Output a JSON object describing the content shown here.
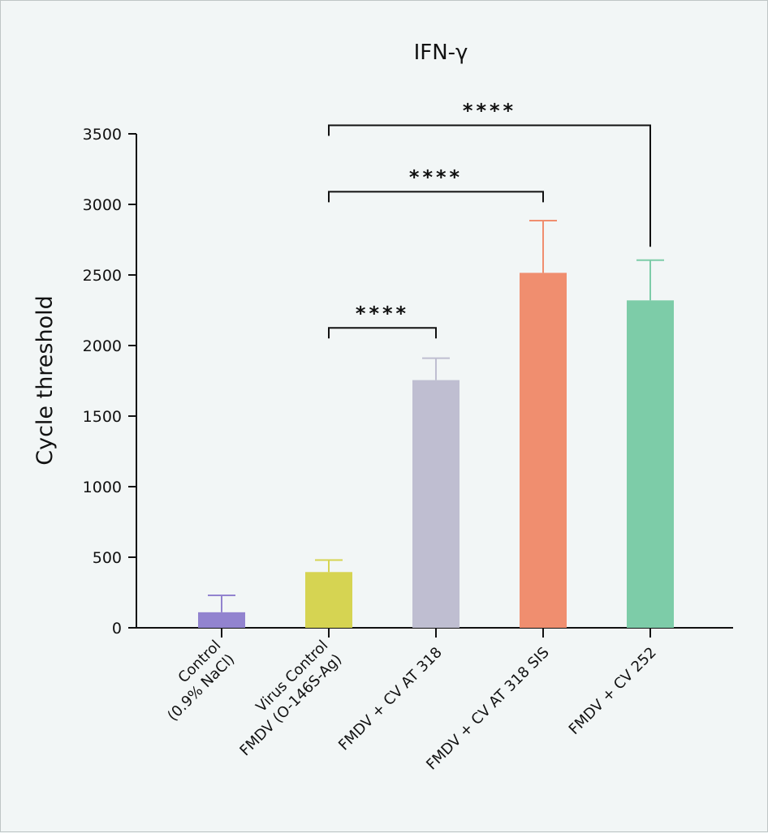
{
  "chart_data": {
    "type": "bar",
    "title": "IFN-γ",
    "xlabel": "",
    "ylabel": "Cycle threshold",
    "ylim": [
      0,
      3500
    ],
    "yticks": [
      0,
      500,
      1000,
      1500,
      2000,
      2500,
      3000,
      3500
    ],
    "grid": false,
    "categories": [
      [
        "Control",
        "(0.9% NaCl)"
      ],
      [
        "Virus Control",
        "FMDV (O-146S-Ag)"
      ],
      [
        "FMDV + CV AT 318"
      ],
      [
        "FMDV + CV AT 318 SIS"
      ],
      [
        "FMDV + CV 252"
      ]
    ],
    "values": [
      110,
      395,
      1755,
      2515,
      2320
    ],
    "errors_upper": [
      230,
      480,
      1910,
      2885,
      2605
    ],
    "colors": [
      "#9283cf",
      "#d6d452",
      "#bfbed1",
      "#f08e6f",
      "#7dcca8"
    ],
    "significance": [
      {
        "from": 1,
        "to": 2,
        "label": "****",
        "y": 2125
      },
      {
        "from": 1,
        "to": 3,
        "label": "****",
        "y": 3090
      },
      {
        "from": 1,
        "to": 4,
        "label": "****",
        "y": 3560,
        "right_end": 2700
      }
    ]
  }
}
